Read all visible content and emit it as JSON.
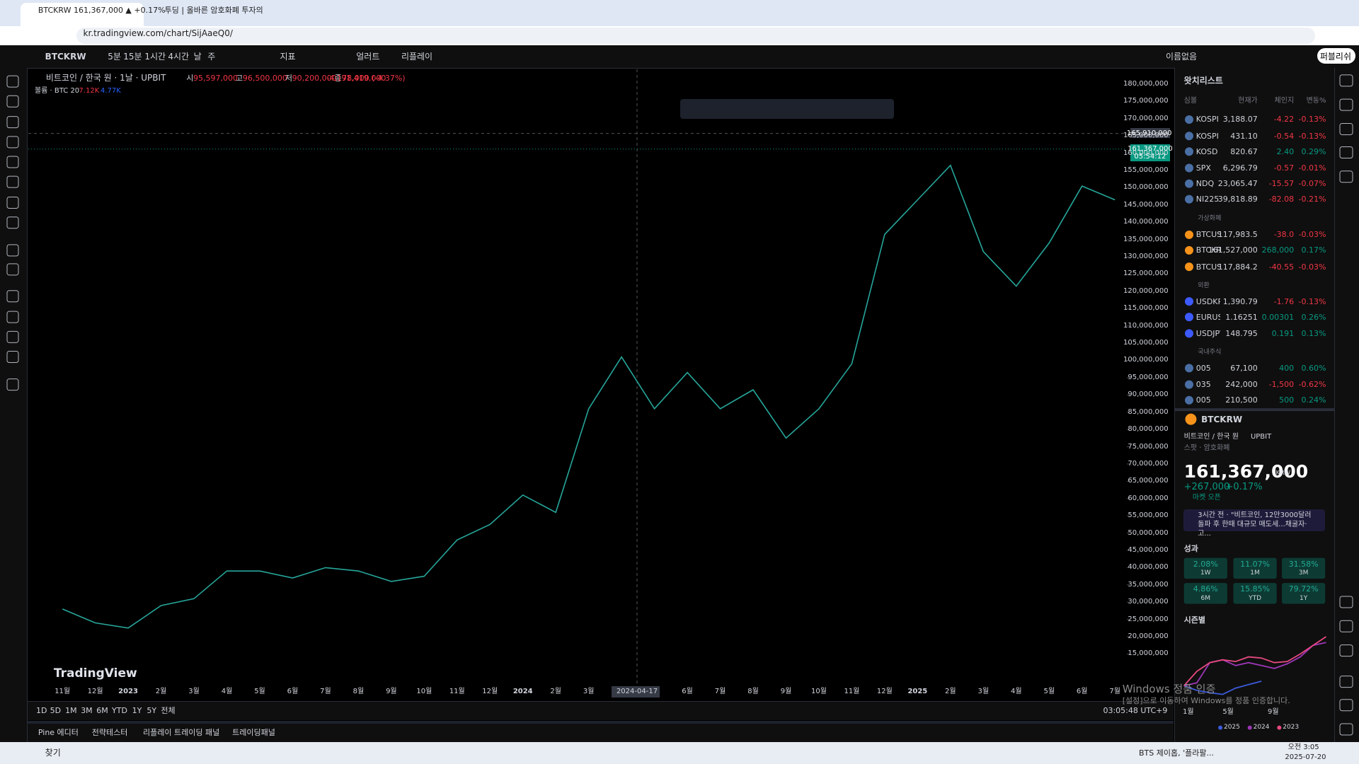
{
  "browser": {
    "tabs": [
      "BTCKRW 161,367,000 ▲ +0.17%",
      "투딩 | 올바른 암호화폐 투자의"
    ],
    "url": "kr.tradingview.com/chart/SijAaeQ0/"
  },
  "toolbar": {
    "symbol": "BTCKRW",
    "intervals": [
      "5분",
      "15분",
      "1시간",
      "4시간",
      "날",
      "주"
    ],
    "indicators": "지표",
    "alerts": "얼러트",
    "replay": "리플레이",
    "layout": "이름없음",
    "publish": "퍼블리쉬"
  },
  "legend": {
    "title": "비트코인 / 한국 원 · 1날 · UPBIT",
    "ohlc": [
      {
        "label": "시",
        "value": "95,597,000"
      },
      {
        "label": "고",
        "value": "96,500,000"
      },
      {
        "label": "저",
        "value": "90,200,000"
      },
      {
        "label": "종",
        "value": "91,419,000"
      }
    ],
    "change": "-4,178,000 (-4.37%)",
    "volume_label": "볼륨 · BTC 20",
    "volume_values": [
      "7.12K",
      "4.77K"
    ]
  },
  "price_scale": {
    "crosshair_price": "165,910,000",
    "last_price": "161,367,000",
    "countdown": "05:54:12"
  },
  "chart_data": {
    "type": "line",
    "color": "#26a69a",
    "categories": [
      "11월",
      "12월",
      "2023",
      "2월",
      "3월",
      "4월",
      "5월",
      "6월",
      "7월",
      "8월",
      "9월",
      "10월",
      "11월",
      "12월",
      "2024",
      "2월",
      "3월",
      null,
      null,
      "6월",
      "7월",
      "8월",
      "9월",
      "10월",
      "11월",
      "12월",
      "2025",
      "2월",
      "3월",
      "4월",
      "5월",
      "6월",
      "7월"
    ],
    "values": [
      28000000,
      24000000,
      22500000,
      29000000,
      31000000,
      39000000,
      39000000,
      37000000,
      40000000,
      39000000,
      36000000,
      37500000,
      48000000,
      52500000,
      61000000,
      56000000,
      86000000,
      101000000,
      86000000,
      96500000,
      86000000,
      91500000,
      77500000,
      86000000,
      99000000,
      136500000,
      146500000,
      156500000,
      131500000,
      121500000,
      134000000,
      150500000,
      146500000
    ],
    "ylim": [
      6200000,
      184300000
    ],
    "yticks": [
      {
        "value": 180000000,
        "label": "180,000,000"
      },
      {
        "value": 175000000,
        "label": "175,000,000"
      },
      {
        "value": 170000000,
        "label": "170,000,000"
      },
      {
        "value": 165000000,
        "label": "165,000,000"
      },
      {
        "value": 160000000,
        "label": "160,000,000"
      },
      {
        "value": 155000000,
        "label": "155,000,000"
      },
      {
        "value": 150000000,
        "label": "150,000,000"
      },
      {
        "value": 145000000,
        "label": "145,000,000"
      },
      {
        "value": 140000000,
        "label": "140,000,000"
      },
      {
        "value": 135000000,
        "label": "135,000,000"
      },
      {
        "value": 130000000,
        "label": "130,000,000"
      },
      {
        "value": 125000000,
        "label": "125,000,000"
      },
      {
        "value": 120000000,
        "label": "120,000,000"
      },
      {
        "value": 115000000,
        "label": "115,000,000"
      },
      {
        "value": 110000000,
        "label": "110,000,000"
      },
      {
        "value": 105000000,
        "label": "105,000,000"
      },
      {
        "value": 100000000,
        "label": "100,000,000"
      },
      {
        "value": 95000000,
        "label": "95,000,000"
      },
      {
        "value": 90000000,
        "label": "90,000,000"
      },
      {
        "value": 85000000,
        "label": "85,000,000"
      },
      {
        "value": 80000000,
        "label": "80,000,000"
      },
      {
        "value": 75000000,
        "label": "75,000,000"
      },
      {
        "value": 70000000,
        "label": "70,000,000"
      },
      {
        "value": 65000000,
        "label": "65,000,000"
      },
      {
        "value": 60000000,
        "label": "60,000,000"
      },
      {
        "value": 55000000,
        "label": "55,000,000"
      },
      {
        "value": 50000000,
        "label": "50,000,000"
      },
      {
        "value": 45000000,
        "label": "45,000,000"
      },
      {
        "value": 40000000,
        "label": "40,000,000"
      },
      {
        "value": 35000000,
        "label": "35,000,000"
      },
      {
        "value": 30000000,
        "label": "30,000,000"
      },
      {
        "value": 25000000,
        "label": "25,000,000"
      },
      {
        "value": 20000000,
        "label": "20,000,000"
      },
      {
        "value": 15000000,
        "label": "15,000,000"
      }
    ],
    "crosshair_date": "2024-04-17",
    "watermark": "TradingView"
  },
  "range_bar": {
    "ranges": [
      "1D",
      "5D",
      "1M",
      "3M",
      "6M",
      "YTD",
      "1Y",
      "5Y",
      "전체"
    ],
    "clock": "03:05:48 UTC+9"
  },
  "bottom_tabs": [
    "Pine 에디터",
    "전략테스터",
    "리플레이 트레이딩 패널",
    "트레이딩패널"
  ],
  "watchlist": {
    "title": "왓치리스트",
    "headers": [
      "심볼",
      "현재가",
      "체인지",
      "변동%"
    ],
    "groups": [
      {
        "name": null,
        "rows": [
          [
            "KOSPI",
            "3,188.07",
            "-4.22",
            "-0.13%"
          ],
          [
            "KOSPI",
            "431.10",
            "-0.54",
            "-0.13%"
          ],
          [
            "KOSD",
            "820.67",
            "2.40",
            "0.29%"
          ],
          [
            "SPX",
            "6,296.79",
            "-0.57",
            "-0.01%"
          ],
          [
            "NDQ",
            "23,065.47",
            "-15.57",
            "-0.07%"
          ],
          [
            "NI225",
            "39,818.89",
            "-82.08",
            "-0.21%"
          ]
        ]
      },
      {
        "name": "가상화폐",
        "rows": [
          [
            "BTCUSD",
            "117,983.5",
            "-38.0",
            "-0.03%"
          ],
          [
            "BTCKRW",
            "161,527,000",
            "268,000",
            "0.17%"
          ],
          [
            "BTCUSD",
            "117,884.2",
            "-40.55",
            "-0.03%"
          ]
        ]
      },
      {
        "name": "외환",
        "rows": [
          [
            "USDKRW",
            "1,390.79",
            "-1.76",
            "-0.13%"
          ],
          [
            "EURUSD",
            "1.16251",
            "0.00301",
            "0.26%"
          ],
          [
            "USDJPY",
            "148.795",
            "0.191",
            "0.13%"
          ]
        ]
      },
      {
        "name": "국내주식",
        "rows": [
          [
            "005",
            "67,100",
            "400",
            "0.60%"
          ],
          [
            "035",
            "242,000",
            "-1,500",
            "-0.62%"
          ],
          [
            "005",
            "210,500",
            "500",
            "0.24%"
          ]
        ]
      }
    ]
  },
  "detail": {
    "symbol": "BTCKRW",
    "name": "비트코인 / 한국 원",
    "exchange": "UPBIT",
    "kind": "스팟 · 암호화폐",
    "price": "161,367,000",
    "currency": "KRW",
    "change": "+267,000",
    "change_pct": "+0.17%",
    "status": "마켓 오픈",
    "news": "3시간 전 · \"비트코인, 12만3000달러 돌파 후 한때 대규모 매도세...채굴자·고...",
    "performance_title": "성과",
    "performance": [
      [
        "2.08%",
        "1W"
      ],
      [
        "11.07%",
        "1M"
      ],
      [
        "31.58%",
        "3M"
      ],
      [
        "4.86%",
        "6M"
      ],
      [
        "15.85%",
        "YTD"
      ],
      [
        "79.72%",
        "1Y"
      ]
    ],
    "seasonal": {
      "title": "시즌별",
      "xlabels": [
        "1월",
        "5월",
        "9월"
      ],
      "ylim": [
        -20,
        100
      ],
      "series": [
        {
          "name": "2025",
          "color": "#3b5bdb",
          "values": [
            0,
            -8,
            -12,
            -15,
            -4,
            2,
            8
          ]
        },
        {
          "name": "2024",
          "color": "#9c36b5",
          "values": [
            0,
            5,
            40,
            45,
            35,
            40,
            35,
            30,
            38,
            50,
            70,
            75
          ]
        },
        {
          "name": "2023",
          "color": "#e64980",
          "values": [
            0,
            25,
            40,
            45,
            42,
            50,
            48,
            40,
            42,
            55,
            70,
            85
          ]
        }
      ]
    }
  },
  "os": {
    "activation_title": "Windows 정품 인증",
    "activation_text": "[설정]으로 이동하여 Windows를 정품 인증합니다.",
    "search": "찾기",
    "news": "BTS 제이홉, '플라팔...",
    "time": "오전 3:05",
    "date": "2025-07-20"
  }
}
